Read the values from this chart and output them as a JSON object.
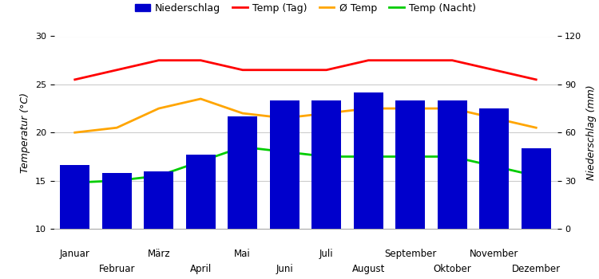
{
  "months": [
    "Januar",
    "Februar",
    "März",
    "April",
    "Mai",
    "Juni",
    "Juli",
    "August",
    "September",
    "Oktober",
    "November",
    "Dezember"
  ],
  "niederschlag_mm": [
    40,
    35,
    36,
    46,
    70,
    80,
    80,
    85,
    80,
    80,
    75,
    50
  ],
  "temp_tag": [
    25.5,
    26.5,
    27.5,
    27.5,
    26.5,
    26.5,
    26.5,
    27.5,
    27.5,
    27.5,
    26.5,
    25.5
  ],
  "temp_avg": [
    20.0,
    20.5,
    22.5,
    23.5,
    22.0,
    21.5,
    22.0,
    22.5,
    22.5,
    22.5,
    21.5,
    20.5
  ],
  "temp_nacht": [
    14.8,
    15.0,
    15.5,
    17.0,
    18.5,
    18.0,
    17.5,
    17.5,
    17.5,
    17.5,
    16.5,
    15.5
  ],
  "bar_color": "#0000cc",
  "line_tag_color": "#ff0000",
  "line_avg_color": "#ffa500",
  "line_nacht_color": "#00cc00",
  "ylabel_left": "Temperatur (°C)",
  "ylabel_right": "Niederschlag (mm)",
  "ylim_left": [
    10,
    30
  ],
  "ylim_right": [
    0,
    120
  ],
  "yticks_left": [
    10,
    15,
    20,
    25,
    30
  ],
  "yticks_right": [
    0,
    30,
    60,
    90,
    120
  ],
  "legend_labels": [
    "Niederschlag",
    "Temp (Tag)",
    "Ø Temp",
    "Temp (Nacht)"
  ],
  "background_color": "#ffffff",
  "grid_color": "#cccccc"
}
